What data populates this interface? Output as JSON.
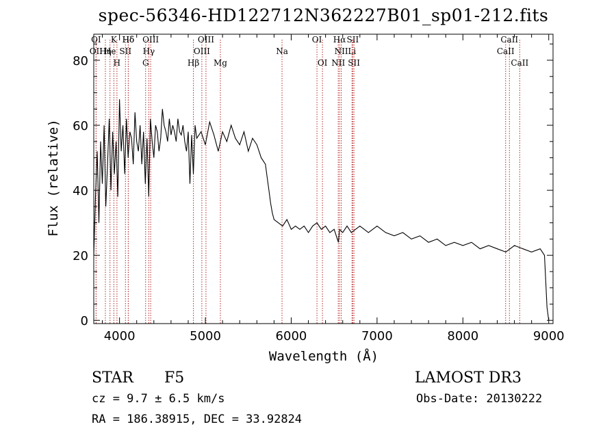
{
  "chart_data": {
    "type": "line",
    "title": "spec-56346-HD122712N362227B01_sp01-212.fits",
    "xlabel": "Wavelength (Å)",
    "ylabel": "Flux (relative)",
    "xlim": [
      3700,
      9050
    ],
    "ylim": [
      -1,
      88
    ],
    "xticks": [
      4000,
      5000,
      6000,
      7000,
      8000,
      9000
    ],
    "yticks": [
      0,
      20,
      40,
      60,
      80
    ],
    "grid": false,
    "series": [
      {
        "name": "flux",
        "x": [
          3700,
          3720,
          3740,
          3760,
          3780,
          3800,
          3820,
          3840,
          3860,
          3880,
          3900,
          3920,
          3940,
          3960,
          3980,
          4000,
          4020,
          4040,
          4060,
          4080,
          4100,
          4120,
          4140,
          4160,
          4180,
          4200,
          4220,
          4240,
          4260,
          4280,
          4300,
          4320,
          4340,
          4360,
          4380,
          4400,
          4420,
          4440,
          4460,
          4480,
          4500,
          4520,
          4540,
          4560,
          4580,
          4600,
          4620,
          4640,
          4660,
          4680,
          4700,
          4720,
          4740,
          4760,
          4780,
          4800,
          4820,
          4840,
          4860,
          4880,
          4900,
          4950,
          5000,
          5050,
          5100,
          5150,
          5200,
          5250,
          5300,
          5350,
          5400,
          5450,
          5500,
          5550,
          5600,
          5650,
          5700,
          5720,
          5740,
          5760,
          5780,
          5800,
          5850,
          5900,
          5950,
          6000,
          6050,
          6100,
          6150,
          6200,
          6250,
          6300,
          6350,
          6400,
          6450,
          6500,
          6550,
          6563,
          6600,
          6650,
          6700,
          6750,
          6800,
          6850,
          6900,
          6950,
          7000,
          7100,
          7200,
          7300,
          7400,
          7500,
          7600,
          7700,
          7800,
          7900,
          8000,
          8100,
          8200,
          8300,
          8400,
          8500,
          8600,
          8700,
          8800,
          8900,
          8950,
          8980,
          9000
        ],
        "y": [
          20,
          38,
          52,
          30,
          55,
          42,
          60,
          35,
          48,
          62,
          40,
          58,
          45,
          55,
          38,
          68,
          52,
          60,
          45,
          62,
          50,
          58,
          56,
          48,
          64,
          55,
          52,
          60,
          48,
          58,
          42,
          56,
          38,
          62,
          55,
          50,
          60,
          58,
          52,
          56,
          65,
          60,
          58,
          55,
          62,
          57,
          60,
          58,
          55,
          62,
          58,
          57,
          60,
          55,
          52,
          58,
          42,
          57,
          45,
          60,
          56,
          58,
          54,
          61,
          57,
          52,
          58,
          55,
          60,
          56,
          54,
          58,
          52,
          56,
          54,
          50,
          48,
          44,
          40,
          36,
          33,
          31,
          30,
          29,
          31,
          28,
          29,
          28,
          29,
          27,
          29,
          30,
          28,
          29,
          27,
          28,
          24,
          28,
          27,
          29,
          27,
          28,
          29,
          28,
          27,
          28,
          29,
          27,
          26,
          27,
          25,
          26,
          24,
          25,
          23,
          24,
          23,
          24,
          22,
          23,
          22,
          21,
          23,
          22,
          21,
          22,
          20,
          4,
          0
        ]
      }
    ],
    "line_identifications": [
      {
        "label": "Hδ",
        "x": 4102
      },
      {
        "label": "K",
        "x": 3934
      },
      {
        "label": "Hδ",
        "x": 4102
      },
      {
        "label": "OIII",
        "x": 4363
      },
      {
        "label": "OIII",
        "x": 5007
      },
      {
        "label": "OI",
        "x": 6300
      },
      {
        "label": "Hα",
        "x": 6563
      },
      {
        "label": "SII",
        "x": 6717
      },
      {
        "label": "CaII",
        "x": 8542
      },
      {
        "label": "OI",
        "x": 3727
      },
      {
        "label": "He",
        "x": 3889
      },
      {
        "label": "SII",
        "x": 4069
      },
      {
        "label": "Hγ",
        "x": 4341
      },
      {
        "label": "OIII",
        "x": 4959
      },
      {
        "label": "Na",
        "x": 5893
      },
      {
        "label": "NII",
        "x": 6583
      },
      {
        "label": "Li",
        "x": 6708
      },
      {
        "label": "CaII",
        "x": 8498
      },
      {
        "label": "OII",
        "x": 3727
      },
      {
        "label": "Hη",
        "x": 3835
      },
      {
        "label": "H",
        "x": 3970
      },
      {
        "label": "G",
        "x": 4304
      },
      {
        "label": "Hβ",
        "x": 4861
      },
      {
        "label": "Mg",
        "x": 5175
      },
      {
        "label": "OI",
        "x": 6364
      },
      {
        "label": "NII",
        "x": 6548
      },
      {
        "label": "SII",
        "x": 6731
      },
      {
        "label": "CaII",
        "x": 8662
      }
    ]
  },
  "info": {
    "class": "STAR",
    "subclass": "F5",
    "survey": "LAMOST DR3",
    "cz": "cz = 9.7 ± 6.5 km/s",
    "obs_date": "Obs-Date: 20130222",
    "coords": "RA = 186.38915, DEC =  33.92824"
  },
  "colors": {
    "line": "#000000",
    "marker": "#b22222",
    "axis": "#000000"
  }
}
